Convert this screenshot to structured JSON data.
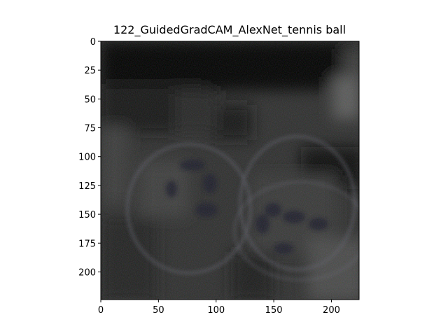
{
  "figure": {
    "title": "122_GuidedGradCAM_AlexNet_tennis ball"
  },
  "image": {
    "description_class": "tennis ball",
    "size": [
      224,
      224
    ]
  },
  "axes": {
    "x_ticks": [
      "0",
      "50",
      "100",
      "150",
      "200"
    ],
    "x_tick_values": [
      0,
      50,
      100,
      150,
      200
    ],
    "y_ticks": [
      "0",
      "25",
      "50",
      "75",
      "100",
      "125",
      "150",
      "175",
      "200"
    ],
    "y_tick_values": [
      0,
      25,
      50,
      75,
      100,
      125,
      150,
      175,
      200
    ],
    "xlim": [
      0,
      224
    ],
    "ylim": [
      224,
      0
    ]
  }
}
